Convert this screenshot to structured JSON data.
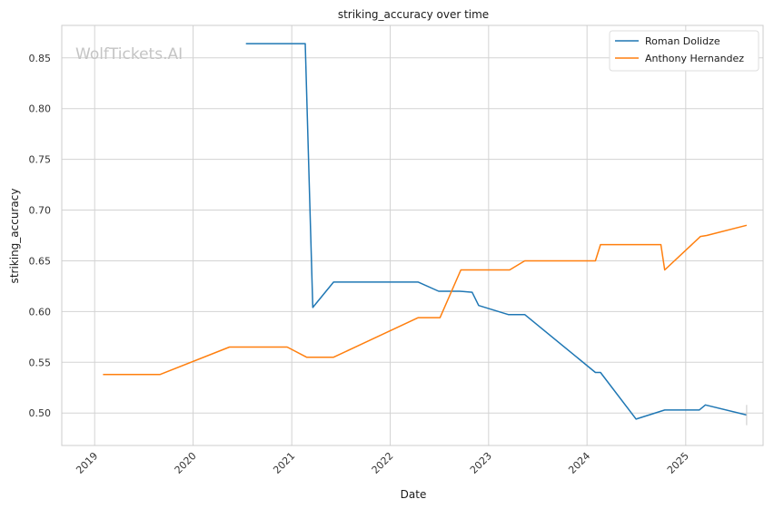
{
  "chart_data": {
    "type": "line",
    "title": "striking_accuracy over time",
    "xlabel": "Date",
    "ylabel": "striking_accuracy",
    "watermark": "WolfTickets.AI",
    "x_ticks": [
      "2019",
      "2020",
      "2021",
      "2022",
      "2023",
      "2024",
      "2025"
    ],
    "y_ticks": [
      "0.50",
      "0.55",
      "0.60",
      "0.65",
      "0.70",
      "0.75",
      "0.80",
      "0.85"
    ],
    "xlim": [
      "2018-09-01",
      "2025-10-15"
    ],
    "ylim": [
      0.468,
      0.882
    ],
    "grid": true,
    "legend_position": "top-right",
    "colors": {
      "Roman Dolidze": "#1f77b4",
      "Anthony Hernandez": "#ff7f0e"
    },
    "series": [
      {
        "name": "Roman Dolidze",
        "points": [
          [
            "2020-07-15",
            0.864
          ],
          [
            "2021-02-20",
            0.864
          ],
          [
            "2021-03-20",
            0.604
          ],
          [
            "2021-06-05",
            0.629
          ],
          [
            "2022-04-15",
            0.629
          ],
          [
            "2022-06-30",
            0.62
          ],
          [
            "2022-09-15",
            0.62
          ],
          [
            "2022-11-01",
            0.619
          ],
          [
            "2022-11-25",
            0.606
          ],
          [
            "2023-03-15",
            0.597
          ],
          [
            "2023-05-15",
            0.597
          ],
          [
            "2024-02-01",
            0.54
          ],
          [
            "2024-02-20",
            0.54
          ],
          [
            "2024-07-01",
            0.494
          ],
          [
            "2024-10-15",
            0.503
          ],
          [
            "2025-02-20",
            0.503
          ],
          [
            "2025-03-15",
            0.508
          ],
          [
            "2025-08-15",
            0.498
          ]
        ]
      },
      {
        "name": "Anthony Hernandez",
        "points": [
          [
            "2019-02-01",
            0.538
          ],
          [
            "2019-09-01",
            0.538
          ],
          [
            "2020-05-15",
            0.565
          ],
          [
            "2020-12-15",
            0.565
          ],
          [
            "2021-02-25",
            0.555
          ],
          [
            "2021-06-05",
            0.555
          ],
          [
            "2022-04-15",
            0.594
          ],
          [
            "2022-07-05",
            0.594
          ],
          [
            "2022-09-20",
            0.641
          ],
          [
            "2023-03-20",
            0.641
          ],
          [
            "2023-05-15",
            0.65
          ],
          [
            "2024-02-01",
            0.65
          ],
          [
            "2024-02-20",
            0.666
          ],
          [
            "2024-10-01",
            0.666
          ],
          [
            "2024-10-15",
            0.641
          ],
          [
            "2025-02-25",
            0.674
          ],
          [
            "2025-03-20",
            0.675
          ],
          [
            "2025-08-15",
            0.685
          ]
        ]
      }
    ]
  }
}
